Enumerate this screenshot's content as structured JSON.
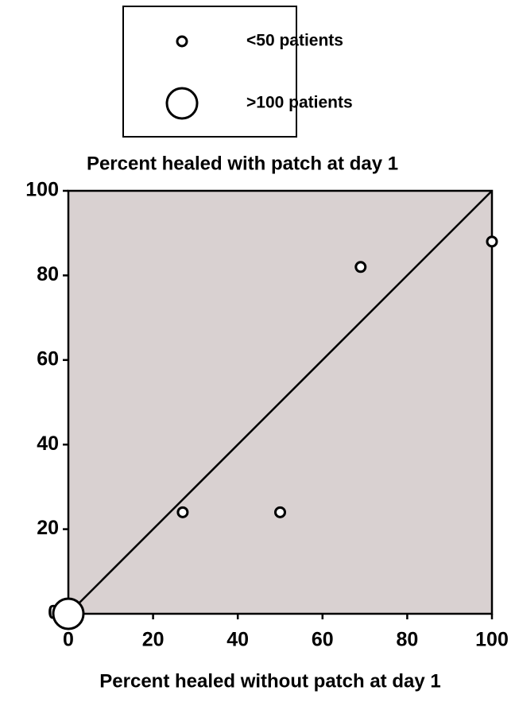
{
  "chart_data": {
    "type": "scatter",
    "ylabel": "Percent healed with patch at day 1",
    "xlabel": "Percent healed without patch at day 1",
    "series": [
      {
        "name": "<50 patients",
        "x": [
          27,
          50,
          69,
          100
        ],
        "values": [
          24,
          24,
          82,
          88
        ],
        "color": "#ffffff"
      },
      {
        "name": ">100 patients",
        "x": [
          0
        ],
        "values": [
          0
        ],
        "color": "#ffffff"
      }
    ],
    "xlim": [
      0,
      100
    ],
    "ylim": [
      0,
      100
    ],
    "xticks": [
      0,
      20,
      40,
      60,
      80,
      100
    ],
    "yticks": [
      0,
      20,
      40,
      60,
      80,
      100
    ],
    "background": "#d9d1d1",
    "identity_line": true,
    "legend": "top"
  }
}
